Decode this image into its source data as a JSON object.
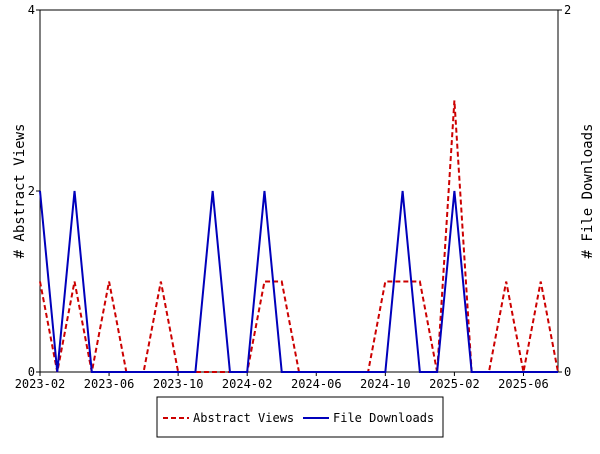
{
  "chart_data": {
    "type": "line",
    "categories": [
      "2023-02",
      "2023-03",
      "2023-04",
      "2023-05",
      "2023-06",
      "2023-07",
      "2023-08",
      "2023-09",
      "2023-10",
      "2023-11",
      "2023-12",
      "2024-01",
      "2024-02",
      "2024-03",
      "2024-04",
      "2024-05",
      "2024-06",
      "2024-07",
      "2024-08",
      "2024-09",
      "2024-10",
      "2024-11",
      "2024-12",
      "2025-01",
      "2025-02",
      "2025-03",
      "2025-04",
      "2025-05",
      "2025-06",
      "2025-07",
      "2025-08"
    ],
    "xticks": [
      "2023-02",
      "2023-06",
      "2023-10",
      "2024-02",
      "2024-06",
      "2024-10",
      "2025-02",
      "2025-06"
    ],
    "ylabel": "# Abstract Views",
    "y2label": "# File Downloads",
    "ylim": [
      0,
      4
    ],
    "yticks": [
      0,
      2,
      4
    ],
    "y2lim": [
      0,
      2
    ],
    "y2ticks": [
      0,
      2
    ],
    "series": [
      {
        "name": "Abstract Views",
        "color": "#cc0000",
        "dash": true,
        "values": [
          1,
          0,
          1,
          0,
          1,
          0,
          0,
          1,
          0,
          0,
          0,
          0,
          0,
          1,
          1,
          0,
          0,
          0,
          0,
          0,
          1,
          1,
          1,
          0,
          3,
          0,
          0,
          1,
          0,
          1,
          0
        ]
      },
      {
        "name": "File Downloads",
        "color": "#0000bb",
        "axis": "y2",
        "values": [
          1,
          0,
          1,
          0,
          0,
          0,
          0,
          0,
          0,
          0,
          1,
          0,
          0,
          1,
          0,
          0,
          0,
          0,
          0,
          0,
          0,
          1,
          0,
          0,
          1,
          0,
          0,
          0,
          0,
          0,
          0
        ]
      }
    ]
  }
}
